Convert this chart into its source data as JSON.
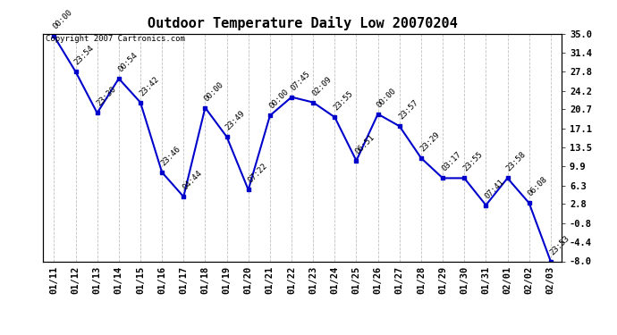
{
  "title": "Outdoor Temperature Daily Low 20070204",
  "copyright": "Copyright 2007 Cartronics.com",
  "x_labels": [
    "01/11",
    "01/12",
    "01/13",
    "01/14",
    "01/15",
    "01/16",
    "01/17",
    "01/18",
    "01/19",
    "01/20",
    "01/21",
    "01/22",
    "01/23",
    "01/24",
    "01/25",
    "01/26",
    "01/27",
    "01/28",
    "01/29",
    "01/30",
    "01/31",
    "02/01",
    "02/02",
    "02/03"
  ],
  "y_values": [
    34.5,
    27.8,
    20.0,
    26.5,
    22.0,
    8.8,
    4.2,
    21.0,
    15.5,
    5.5,
    19.5,
    23.0,
    22.0,
    19.2,
    11.0,
    19.8,
    17.5,
    11.5,
    7.7,
    7.7,
    2.6,
    7.7,
    3.0,
    -8.0
  ],
  "time_labels": [
    "00:00",
    "23:54",
    "23:30",
    "00:54",
    "23:42",
    "23:46",
    "04:44",
    "00:00",
    "23:49",
    "07:22",
    "00:00",
    "07:45",
    "02:09",
    "23:55",
    "06:51",
    "00:00",
    "23:57",
    "23:29",
    "03:17",
    "23:55",
    "07:41",
    "23:58",
    "06:08",
    "23:53"
  ],
  "y_ticks": [
    35.0,
    31.4,
    27.8,
    24.2,
    20.7,
    17.1,
    13.5,
    9.9,
    6.3,
    2.8,
    -0.8,
    -4.4,
    -8.0
  ],
  "y_min": -8.0,
  "y_max": 35.0,
  "line_color": "#0000cc",
  "marker_color": "#0000cc",
  "bg_color": "#ffffff",
  "grid_color": "#c0c0c0",
  "title_fontsize": 11,
  "tick_fontsize": 7.5,
  "annotation_fontsize": 6.5,
  "copyright_fontsize": 6.5
}
